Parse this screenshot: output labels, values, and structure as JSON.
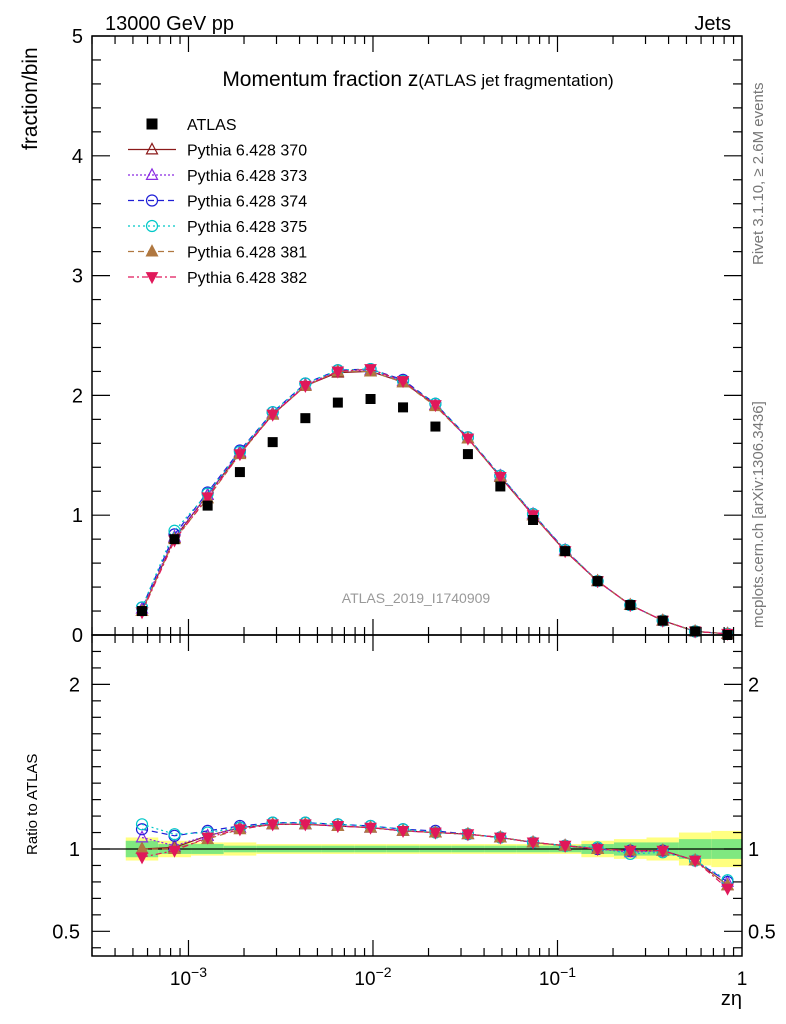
{
  "header": {
    "left": "13000 GeV pp",
    "right": "Jets"
  },
  "side_labels": {
    "rivet": "Rivet 3.1.10, ≥ 2.6M events",
    "mcplots": "mcplots.cern.ch [arXiv:1306.3436]"
  },
  "chart_data": {
    "type": "scatter",
    "title": "Momentum fraction z",
    "title_sub": "(ATLAS jet fragmentation)",
    "watermark": "ATLAS_2019_I1740909",
    "xlabel": "zη",
    "x_scale": "log",
    "xlim": [
      0.0003,
      1
    ],
    "x_tick_labels": [
      "10−3",
      "10−2",
      "10−1",
      "1"
    ],
    "main": {
      "ylabel": "fraction/bin",
      "ylim": [
        0,
        5
      ],
      "ytick_labels": [
        "0",
        "1",
        "2",
        "3",
        "4",
        "5"
      ]
    },
    "ratio": {
      "ylabel": "Ratio to ATLAS",
      "ylim": [
        0.35,
        2.3
      ],
      "ytick_labels": [
        "0.5",
        "1",
        "2"
      ]
    },
    "legend_position": "top-left",
    "x": [
      0.00056,
      0.00084,
      0.00127,
      0.0019,
      0.00286,
      0.0043,
      0.00645,
      0.0097,
      0.01455,
      0.0218,
      0.0327,
      0.049,
      0.0737,
      0.11,
      0.165,
      0.248,
      0.372,
      0.557,
      0.835
    ],
    "data": {
      "name": "ATLAS",
      "color": "#000000",
      "values": [
        0.2,
        0.8,
        1.08,
        1.36,
        1.61,
        1.81,
        1.94,
        1.97,
        1.9,
        1.74,
        1.51,
        1.24,
        0.96,
        0.7,
        0.45,
        0.25,
        0.12,
        0.03,
        0.0
      ],
      "band_stat": [
        0.05,
        0.03,
        0.03,
        0.02,
        0.02,
        0.02,
        0.02,
        0.02,
        0.02,
        0.02,
        0.02,
        0.02,
        0.02,
        0.02,
        0.03,
        0.04,
        0.04,
        0.06,
        0.06
      ],
      "band_total": [
        0.07,
        0.05,
        0.04,
        0.04,
        0.03,
        0.03,
        0.03,
        0.03,
        0.03,
        0.03,
        0.03,
        0.03,
        0.03,
        0.03,
        0.05,
        0.06,
        0.07,
        0.1,
        0.11
      ]
    },
    "series": [
      {
        "name": "Pythia 6.428 370",
        "color": "#8b1a1a",
        "dash": "",
        "marker": "triangle-open",
        "values": [
          0.2,
          0.81,
          1.17,
          1.52,
          1.84,
          2.08,
          2.19,
          2.2,
          2.11,
          1.92,
          1.64,
          1.32,
          1.0,
          0.7,
          0.45,
          0.25,
          0.12,
          0.03,
          0.01
        ],
        "ratio": [
          1.0,
          1.01,
          1.08,
          1.13,
          1.15,
          1.15,
          1.14,
          1.13,
          1.11,
          1.1,
          1.09,
          1.07,
          1.04,
          1.02,
          1.0,
          0.99,
          0.99,
          0.93,
          0.78
        ]
      },
      {
        "name": "Pythia 6.428 373",
        "color": "#8a2be2",
        "dash": "2,2",
        "marker": "triangle-open",
        "values": [
          0.22,
          0.82,
          1.17,
          1.53,
          1.85,
          2.09,
          2.2,
          2.21,
          2.12,
          1.92,
          1.64,
          1.33,
          1.01,
          0.71,
          0.45,
          0.25,
          0.12,
          0.03,
          0.01
        ],
        "ratio": [
          1.07,
          1.02,
          1.08,
          1.13,
          1.15,
          1.15,
          1.14,
          1.13,
          1.11,
          1.1,
          1.09,
          1.07,
          1.04,
          1.02,
          1.0,
          0.98,
          0.99,
          0.93,
          0.8
        ]
      },
      {
        "name": "Pythia 6.428 374",
        "color": "#1f1fd6",
        "dash": "6,4",
        "marker": "circle-open",
        "values": [
          0.23,
          0.84,
          1.19,
          1.54,
          1.86,
          2.1,
          2.21,
          2.22,
          2.13,
          1.93,
          1.65,
          1.33,
          1.01,
          0.71,
          0.45,
          0.25,
          0.12,
          0.03,
          0.01
        ],
        "ratio": [
          1.12,
          1.08,
          1.11,
          1.14,
          1.16,
          1.16,
          1.15,
          1.14,
          1.12,
          1.11,
          1.09,
          1.07,
          1.04,
          1.02,
          1.0,
          0.99,
          0.99,
          0.93,
          0.8
        ]
      },
      {
        "name": "Pythia 6.428 375",
        "color": "#00c8c8",
        "dash": "2,3",
        "marker": "circle-open",
        "values": [
          0.23,
          0.87,
          1.18,
          1.53,
          1.86,
          2.1,
          2.21,
          2.22,
          2.12,
          1.93,
          1.65,
          1.33,
          1.01,
          0.71,
          0.45,
          0.25,
          0.12,
          0.03,
          0.01
        ],
        "ratio": [
          1.15,
          1.09,
          1.1,
          1.13,
          1.16,
          1.16,
          1.15,
          1.14,
          1.12,
          1.1,
          1.09,
          1.07,
          1.04,
          1.02,
          1.01,
          0.97,
          0.98,
          0.93,
          0.81
        ]
      },
      {
        "name": "Pythia 6.428 381",
        "color": "#b07840",
        "dash": "6,4",
        "marker": "triangle-filled",
        "values": [
          0.2,
          0.8,
          1.14,
          1.51,
          1.84,
          2.08,
          2.2,
          2.2,
          2.11,
          1.91,
          1.64,
          1.32,
          1.0,
          0.7,
          0.45,
          0.25,
          0.12,
          0.03,
          0.01
        ],
        "ratio": [
          1.0,
          1.0,
          1.06,
          1.12,
          1.15,
          1.15,
          1.14,
          1.13,
          1.11,
          1.1,
          1.09,
          1.07,
          1.04,
          1.02,
          1.0,
          0.99,
          0.99,
          0.93,
          0.78
        ]
      },
      {
        "name": "Pythia 6.428 382",
        "color": "#e0185a",
        "dash": "6,3,2,3",
        "marker": "triangle-down-filled",
        "values": [
          0.19,
          0.79,
          1.15,
          1.51,
          1.84,
          2.08,
          2.2,
          2.22,
          2.12,
          1.92,
          1.64,
          1.32,
          1.0,
          0.7,
          0.45,
          0.25,
          0.12,
          0.03,
          0.01
        ],
        "ratio": [
          0.95,
          0.99,
          1.07,
          1.12,
          1.15,
          1.15,
          1.14,
          1.13,
          1.11,
          1.1,
          1.09,
          1.07,
          1.04,
          1.02,
          1.0,
          0.99,
          0.99,
          0.93,
          0.76
        ]
      }
    ]
  }
}
